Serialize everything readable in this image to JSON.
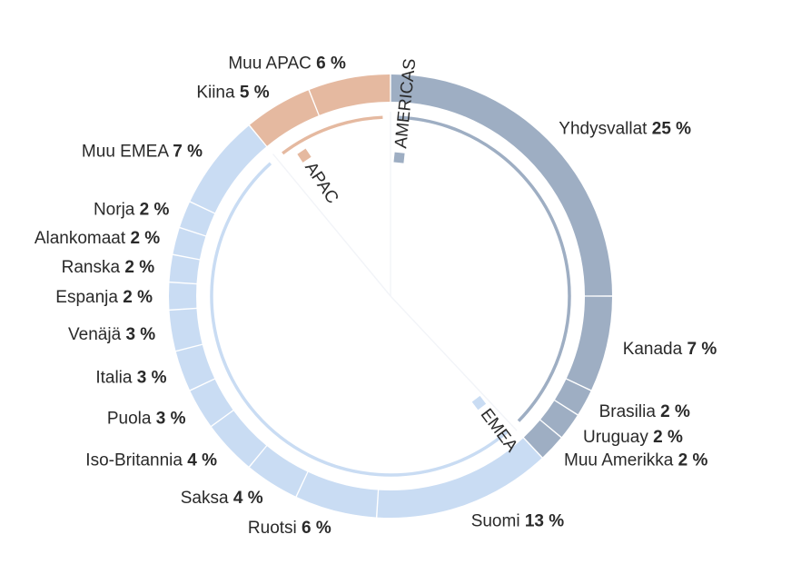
{
  "chart_data": {
    "type": "pie",
    "style": "segmented-ring",
    "slices": [
      {
        "name": "Yhdysvallat",
        "value": 25,
        "pct": "25 %",
        "region": "AMERICAS",
        "bold": true
      },
      {
        "name": "Kanada",
        "value": 7,
        "pct": "7 %",
        "region": "AMERICAS",
        "bold": true
      },
      {
        "name": "Brasilia",
        "value": 2,
        "pct": "2 %",
        "region": "AMERICAS",
        "bold": true
      },
      {
        "name": "Uruguay",
        "value": 2,
        "pct": "2 %",
        "region": "AMERICAS",
        "bold": true
      },
      {
        "name": "Muu Amerikka",
        "value": 2,
        "pct": "2 %",
        "region": "AMERICAS",
        "bold": true
      },
      {
        "name": "Suomi",
        "value": 13,
        "pct": "13 %",
        "region": "EMEA",
        "bold": true
      },
      {
        "name": "Ruotsi",
        "value": 6,
        "pct": "6 %",
        "region": "EMEA",
        "bold": true
      },
      {
        "name": "Saksa",
        "value": 4,
        "pct": "4 %",
        "region": "EMEA",
        "bold": true
      },
      {
        "name": "Iso-Britannia",
        "value": 4,
        "pct": "4 %",
        "region": "EMEA",
        "bold": true
      },
      {
        "name": "Puola",
        "value": 3,
        "pct": "3 %",
        "region": "EMEA",
        "bold": true
      },
      {
        "name": "Italia",
        "value": 3,
        "pct": "3 %",
        "region": "EMEA",
        "bold": true
      },
      {
        "name": "Venäjä",
        "value": 3,
        "pct": "3 %",
        "region": "EMEA",
        "bold": true
      },
      {
        "name": "Espanja",
        "value": 2,
        "pct": "2 %",
        "region": "EMEA",
        "bold": true
      },
      {
        "name": "Ranska",
        "value": 2,
        "pct": "2 %",
        "region": "EMEA",
        "bold": true
      },
      {
        "name": "Alankomaat",
        "value": 2,
        "pct": "2 %",
        "region": "EMEA",
        "bold": true
      },
      {
        "name": "Norja",
        "value": 2,
        "pct": "2 %",
        "region": "EMEA",
        "bold": true
      },
      {
        "name": "Muu EMEA",
        "value": 7,
        "pct": "7 %",
        "region": "EMEA",
        "bold": true
      },
      {
        "name": "Kiina",
        "value": 5,
        "pct": "5 %",
        "region": "APAC",
        "bold": true
      },
      {
        "name": "Muu APAC",
        "value": 6,
        "pct": "6 %",
        "region": "APAC",
        "bold": true
      }
    ],
    "regions": [
      {
        "name": "AMERICAS",
        "color": "#9eaec3"
      },
      {
        "name": "EMEA",
        "color": "#c9dcf3"
      },
      {
        "name": "APAC",
        "color": "#e5b9a0"
      }
    ]
  }
}
